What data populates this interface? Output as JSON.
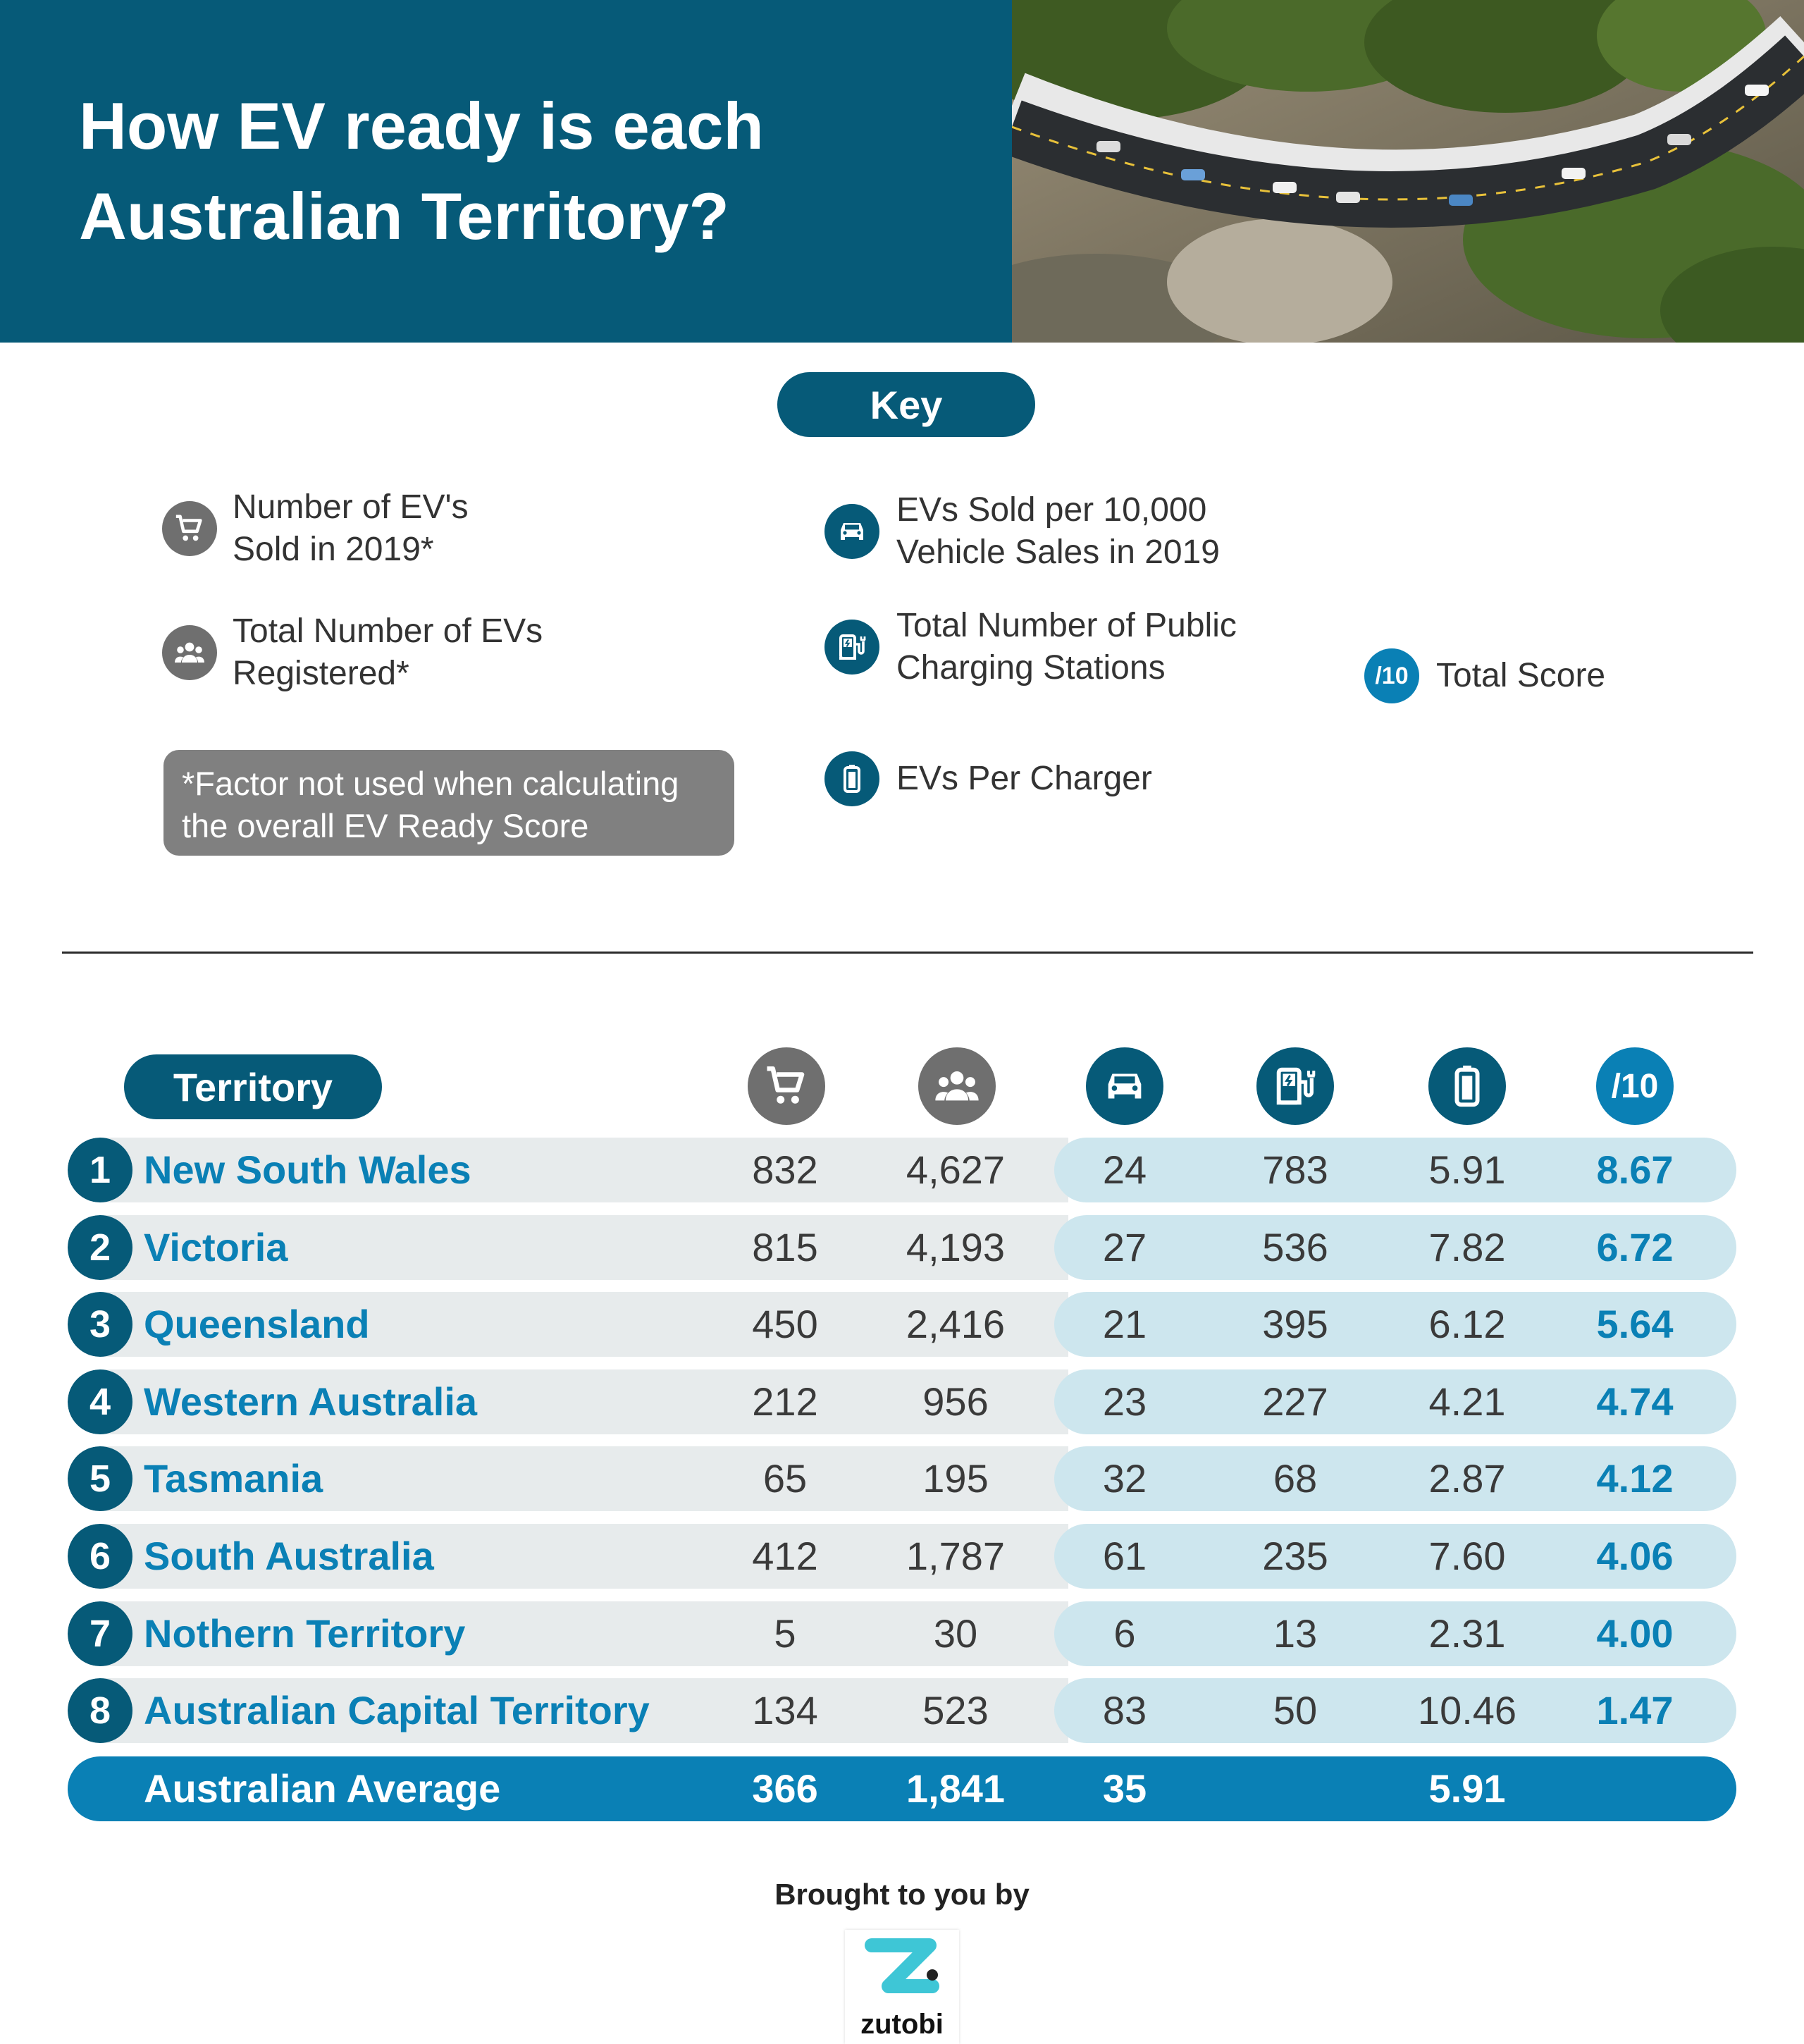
{
  "header": {
    "title_line1": "How EV ready is each",
    "title_line2": "Australian Territory?"
  },
  "key": {
    "title": "Key",
    "items": [
      {
        "icon": "cart-icon",
        "line1": "Number of EV's",
        "line2": "Sold in 2019*"
      },
      {
        "icon": "people-icon",
        "line1": "Total Number of EVs",
        "line2": "Registered*"
      },
      {
        "icon": "car-icon",
        "line1": "EVs Sold per 10,000",
        "line2": "Vehicle Sales in 2019"
      },
      {
        "icon": "charging-station-icon",
        "line1": "Total Number of Public",
        "line2": "Charging Stations"
      },
      {
        "icon": "battery-icon",
        "line1": "EVs Per Charger",
        "line2": ""
      },
      {
        "icon": "score-badge",
        "badge": "/10",
        "line1": "Total Score",
        "line2": ""
      }
    ],
    "note_line1": "*Factor not used when calculating",
    "note_line2": "the overall EV Ready Score"
  },
  "table": {
    "territory_label": "Territory",
    "score_header": "/10",
    "rows": [
      {
        "rank": "1",
        "name": "New South Wales",
        "sold": "832",
        "registered": "4,627",
        "per10k": "24",
        "stations": "783",
        "per_charger": "5.91",
        "score": "8.67"
      },
      {
        "rank": "2",
        "name": "Victoria",
        "sold": "815",
        "registered": "4,193",
        "per10k": "27",
        "stations": "536",
        "per_charger": "7.82",
        "score": "6.72"
      },
      {
        "rank": "3",
        "name": "Queensland",
        "sold": "450",
        "registered": "2,416",
        "per10k": "21",
        "stations": "395",
        "per_charger": "6.12",
        "score": "5.64"
      },
      {
        "rank": "4",
        "name": "Western Australia",
        "sold": "212",
        "registered": "956",
        "per10k": "23",
        "stations": "227",
        "per_charger": "4.21",
        "score": "4.74"
      },
      {
        "rank": "5",
        "name": "Tasmania",
        "sold": "65",
        "registered": "195",
        "per10k": "32",
        "stations": "68",
        "per_charger": "2.87",
        "score": "4.12"
      },
      {
        "rank": "6",
        "name": "South Australia",
        "sold": "412",
        "registered": "1,787",
        "per10k": "61",
        "stations": "235",
        "per_charger": "7.60",
        "score": "4.06"
      },
      {
        "rank": "7",
        "name": "Nothern Territory",
        "sold": "5",
        "registered": "30",
        "per10k": "6",
        "stations": "13",
        "per_charger": "2.31",
        "score": "4.00"
      },
      {
        "rank": "8",
        "name": "Australian Capital Territory",
        "sold": "134",
        "registered": "523",
        "per10k": "83",
        "stations": "50",
        "per_charger": "10.46",
        "score": "1.47"
      }
    ],
    "average": {
      "name": "Australian Average",
      "sold": "366",
      "registered": "1,841",
      "per10k": "35",
      "per_charger": "5.91"
    }
  },
  "footer": {
    "brought_by": "Brought to you by",
    "brand": "zutobi"
  },
  "colors": {
    "navy": "#065a78",
    "accent_blue": "#0a80b5",
    "row_grey": "#e7ebec",
    "row_light_blue": "#cde6ee",
    "icon_grey": "#6f6f6f",
    "brand_teal": "#3ec6d6"
  }
}
